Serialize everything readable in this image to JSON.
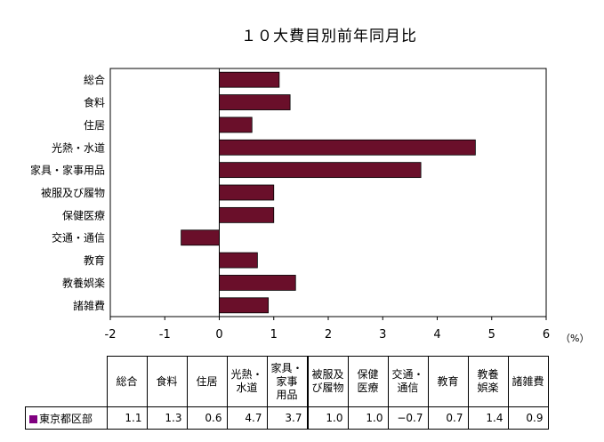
{
  "chart_data": {
    "type": "bar",
    "orientation": "horizontal",
    "title": "１０大費目別前年同月比",
    "categories": [
      "総合",
      "食料",
      "住居",
      "光熱・水道",
      "家具・家事用品",
      "被服及び履物",
      "保健医療",
      "交通・通信",
      "教育",
      "教養娯楽",
      "諸雑費"
    ],
    "table_headers": [
      "総合",
      "食料",
      "住居",
      "光熱・\n水道",
      "家具・\n家事\n用品",
      "被服及\nび履物",
      "保健\n医療",
      "交通・\n通信",
      "教育",
      "教養\n娯楽",
      "諸雑費"
    ],
    "series": [
      {
        "name": "東京都区部",
        "values": [
          1.1,
          1.3,
          0.6,
          4.7,
          3.7,
          1.0,
          1.0,
          -0.7,
          0.7,
          1.4,
          0.9
        ]
      }
    ],
    "value_labels": [
      "1.1",
      "1.3",
      "0.6",
      "4.7",
      "3.7",
      "1.0",
      "1.0",
      "−0.7",
      "0.7",
      "1.4",
      "0.9"
    ],
    "xlim": [
      -2,
      6
    ],
    "xticks": [
      -2,
      -1,
      0,
      1,
      2,
      3,
      4,
      5,
      6
    ],
    "xtick_labels": [
      "-2",
      "-1",
      "0",
      "1",
      "2",
      "3",
      "4",
      "5",
      "6"
    ],
    "unit_label": "（%）",
    "bar_color": "#6a0f2a",
    "legend_color": "#800080",
    "grid": false
  }
}
